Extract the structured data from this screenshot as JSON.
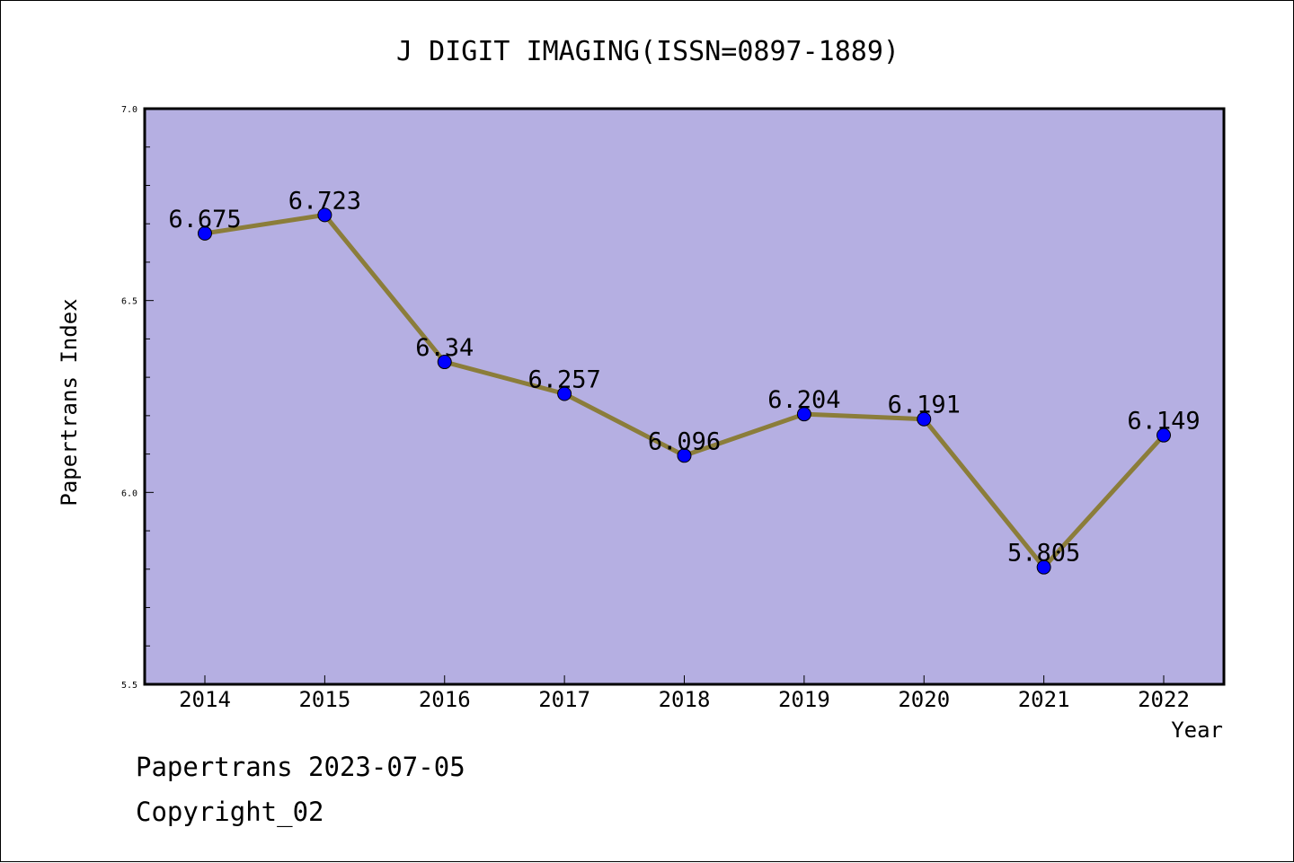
{
  "chart_data": {
    "type": "line",
    "title": "J DIGIT IMAGING(ISSN=0897-1889)",
    "xlabel": "Year",
    "ylabel": "Papertrans Index",
    "categories": [
      "2014",
      "2015",
      "2016",
      "2017",
      "2018",
      "2019",
      "2020",
      "2021",
      "2022"
    ],
    "series": [
      {
        "values": [
          6.675,
          6.723,
          6.34,
          6.257,
          6.096,
          6.204,
          6.191,
          5.805,
          6.149
        ],
        "labels": [
          "6.675",
          "6.723",
          "6.34",
          "6.257",
          "6.096",
          "6.204",
          "6.191",
          "5.805",
          "6.149"
        ]
      }
    ],
    "ylim": [
      5.5,
      7.0
    ],
    "yticks": [
      "5.5",
      "6.0",
      "6.5",
      "7.0"
    ],
    "grid": false,
    "colors": {
      "plot_background": "#b5afe2",
      "line": "#8b7d3a",
      "marker": "#0000ff"
    }
  },
  "footer": {
    "date_line": "Papertrans 2023-07-05",
    "copyright": "Copyright_02"
  }
}
